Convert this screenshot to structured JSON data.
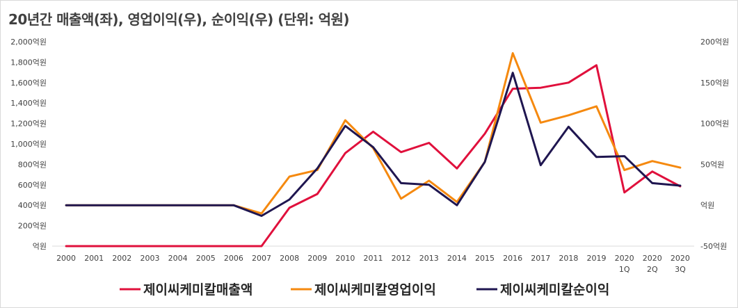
{
  "title": "20년간 매출액(좌), 영업이익(우), 순이익(우) (단위: 억원)",
  "chart_data": {
    "type": "line",
    "title": "20년간 매출액(좌), 영업이익(우), 순이익(우) (단위: 억원)",
    "categories": [
      "2000",
      "2001",
      "2002",
      "2003",
      "2004",
      "2005",
      "2006",
      "2007",
      "2008",
      "2009",
      "2010",
      "2011",
      "2012",
      "2013",
      "2014",
      "2015",
      "2016",
      "2017",
      "2018",
      "2019",
      "2020\n1Q",
      "2020\n2Q",
      "2020\n3Q"
    ],
    "y_left": {
      "range": [
        0,
        2000
      ],
      "ticks": [
        0,
        200,
        400,
        600,
        800,
        1000,
        1200,
        1400,
        1600,
        1800,
        2000
      ],
      "tick_labels": [
        "억원",
        "200억원",
        "400억원",
        "600억원",
        "800억원",
        "1,000억원",
        "1,200억원",
        "1,400억원",
        "1,600억원",
        "1,800억원",
        "2,000억원"
      ]
    },
    "y_right": {
      "range": [
        -50,
        200
      ],
      "ticks": [
        -50,
        0,
        50,
        100,
        150,
        200
      ],
      "tick_labels": [
        "-50억원",
        "억원",
        "50억원",
        "100억원",
        "150억원",
        "200억원"
      ]
    },
    "grid": "none",
    "legend_position": "bottom",
    "series": [
      {
        "name": "제이씨케미칼매출액",
        "axis": "left",
        "color": "#e0103c",
        "values": [
          0,
          0,
          0,
          0,
          0,
          0,
          0,
          0,
          375,
          510,
          910,
          1120,
          920,
          1010,
          760,
          1100,
          1540,
          1550,
          1600,
          1770,
          525,
          730,
          585
        ]
      },
      {
        "name": "제이씨케미칼영업이익",
        "axis": "right",
        "color": "#f5890f",
        "values": [
          0,
          0,
          0,
          0,
          0,
          0,
          0,
          -10,
          35,
          43,
          104,
          70,
          8,
          30,
          4,
          53,
          186,
          101,
          110,
          121,
          43,
          54,
          46
        ]
      },
      {
        "name": "제이씨케미칼순이익",
        "axis": "right",
        "color": "#1f1650",
        "values": [
          0,
          0,
          0,
          0,
          0,
          0,
          0,
          -13,
          7,
          45,
          97,
          71,
          27,
          25,
          0,
          53,
          162,
          49,
          96,
          59,
          60,
          27,
          24
        ]
      }
    ]
  }
}
